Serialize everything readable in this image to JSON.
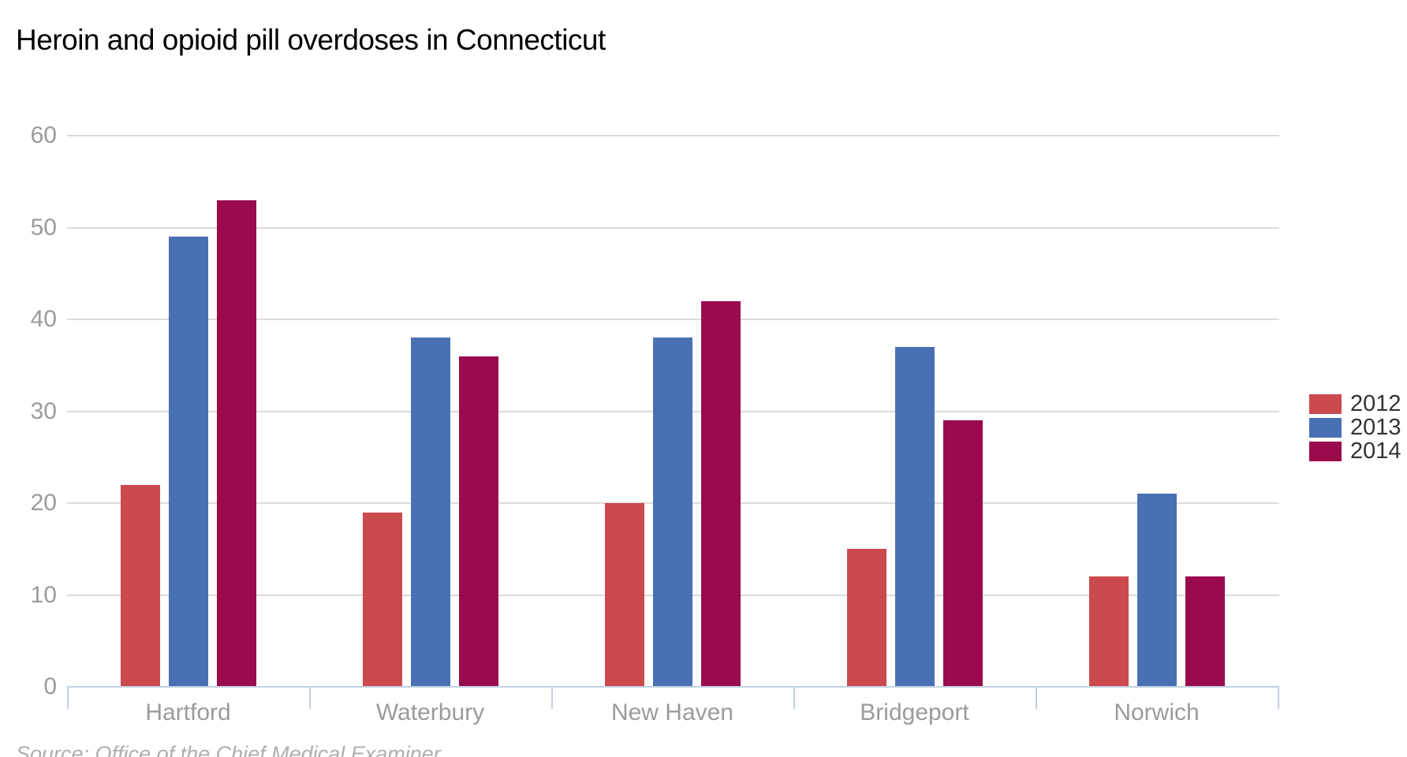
{
  "header": {
    "title": "Heroin and opioid pill overdoses in Connecticut"
  },
  "footer": {
    "source": "Source: Office of the Chief Medical Examiner"
  },
  "colors": {
    "series_2012": "#CB4A4D",
    "series_2013": "#4A70B4",
    "series_2014": "#9A0B4E",
    "gridline": "#DBDBDB",
    "axis_line": "#C0D0E0",
    "tick_label": "#9B9B9B",
    "legend_text": "#333333",
    "source_text": "#AEAEAE",
    "title_text": "#000000",
    "background": "#FFFFFF"
  },
  "chart_data": {
    "type": "bar",
    "title": "Heroin and opioid pill overdoses in Connecticut",
    "categories": [
      "Hartford",
      "Waterbury",
      "New Haven",
      "Bridgeport",
      "Norwich"
    ],
    "series": [
      {
        "name": "2012",
        "color": "#CB4A4D",
        "values": [
          22,
          19,
          20,
          15,
          12
        ]
      },
      {
        "name": "2013",
        "color": "#4A70B4",
        "values": [
          49,
          38,
          38,
          37,
          21
        ]
      },
      {
        "name": "2014",
        "color": "#9A0B4E",
        "values": [
          53,
          36,
          42,
          29,
          12
        ]
      }
    ],
    "xlabel": "",
    "ylabel": "",
    "ylim": [
      0,
      60
    ],
    "yticks": [
      0,
      10,
      20,
      30,
      40,
      50,
      60
    ],
    "grid": true,
    "legend_position": "right",
    "source": "Source: Office of the Chief Medical Examiner"
  }
}
